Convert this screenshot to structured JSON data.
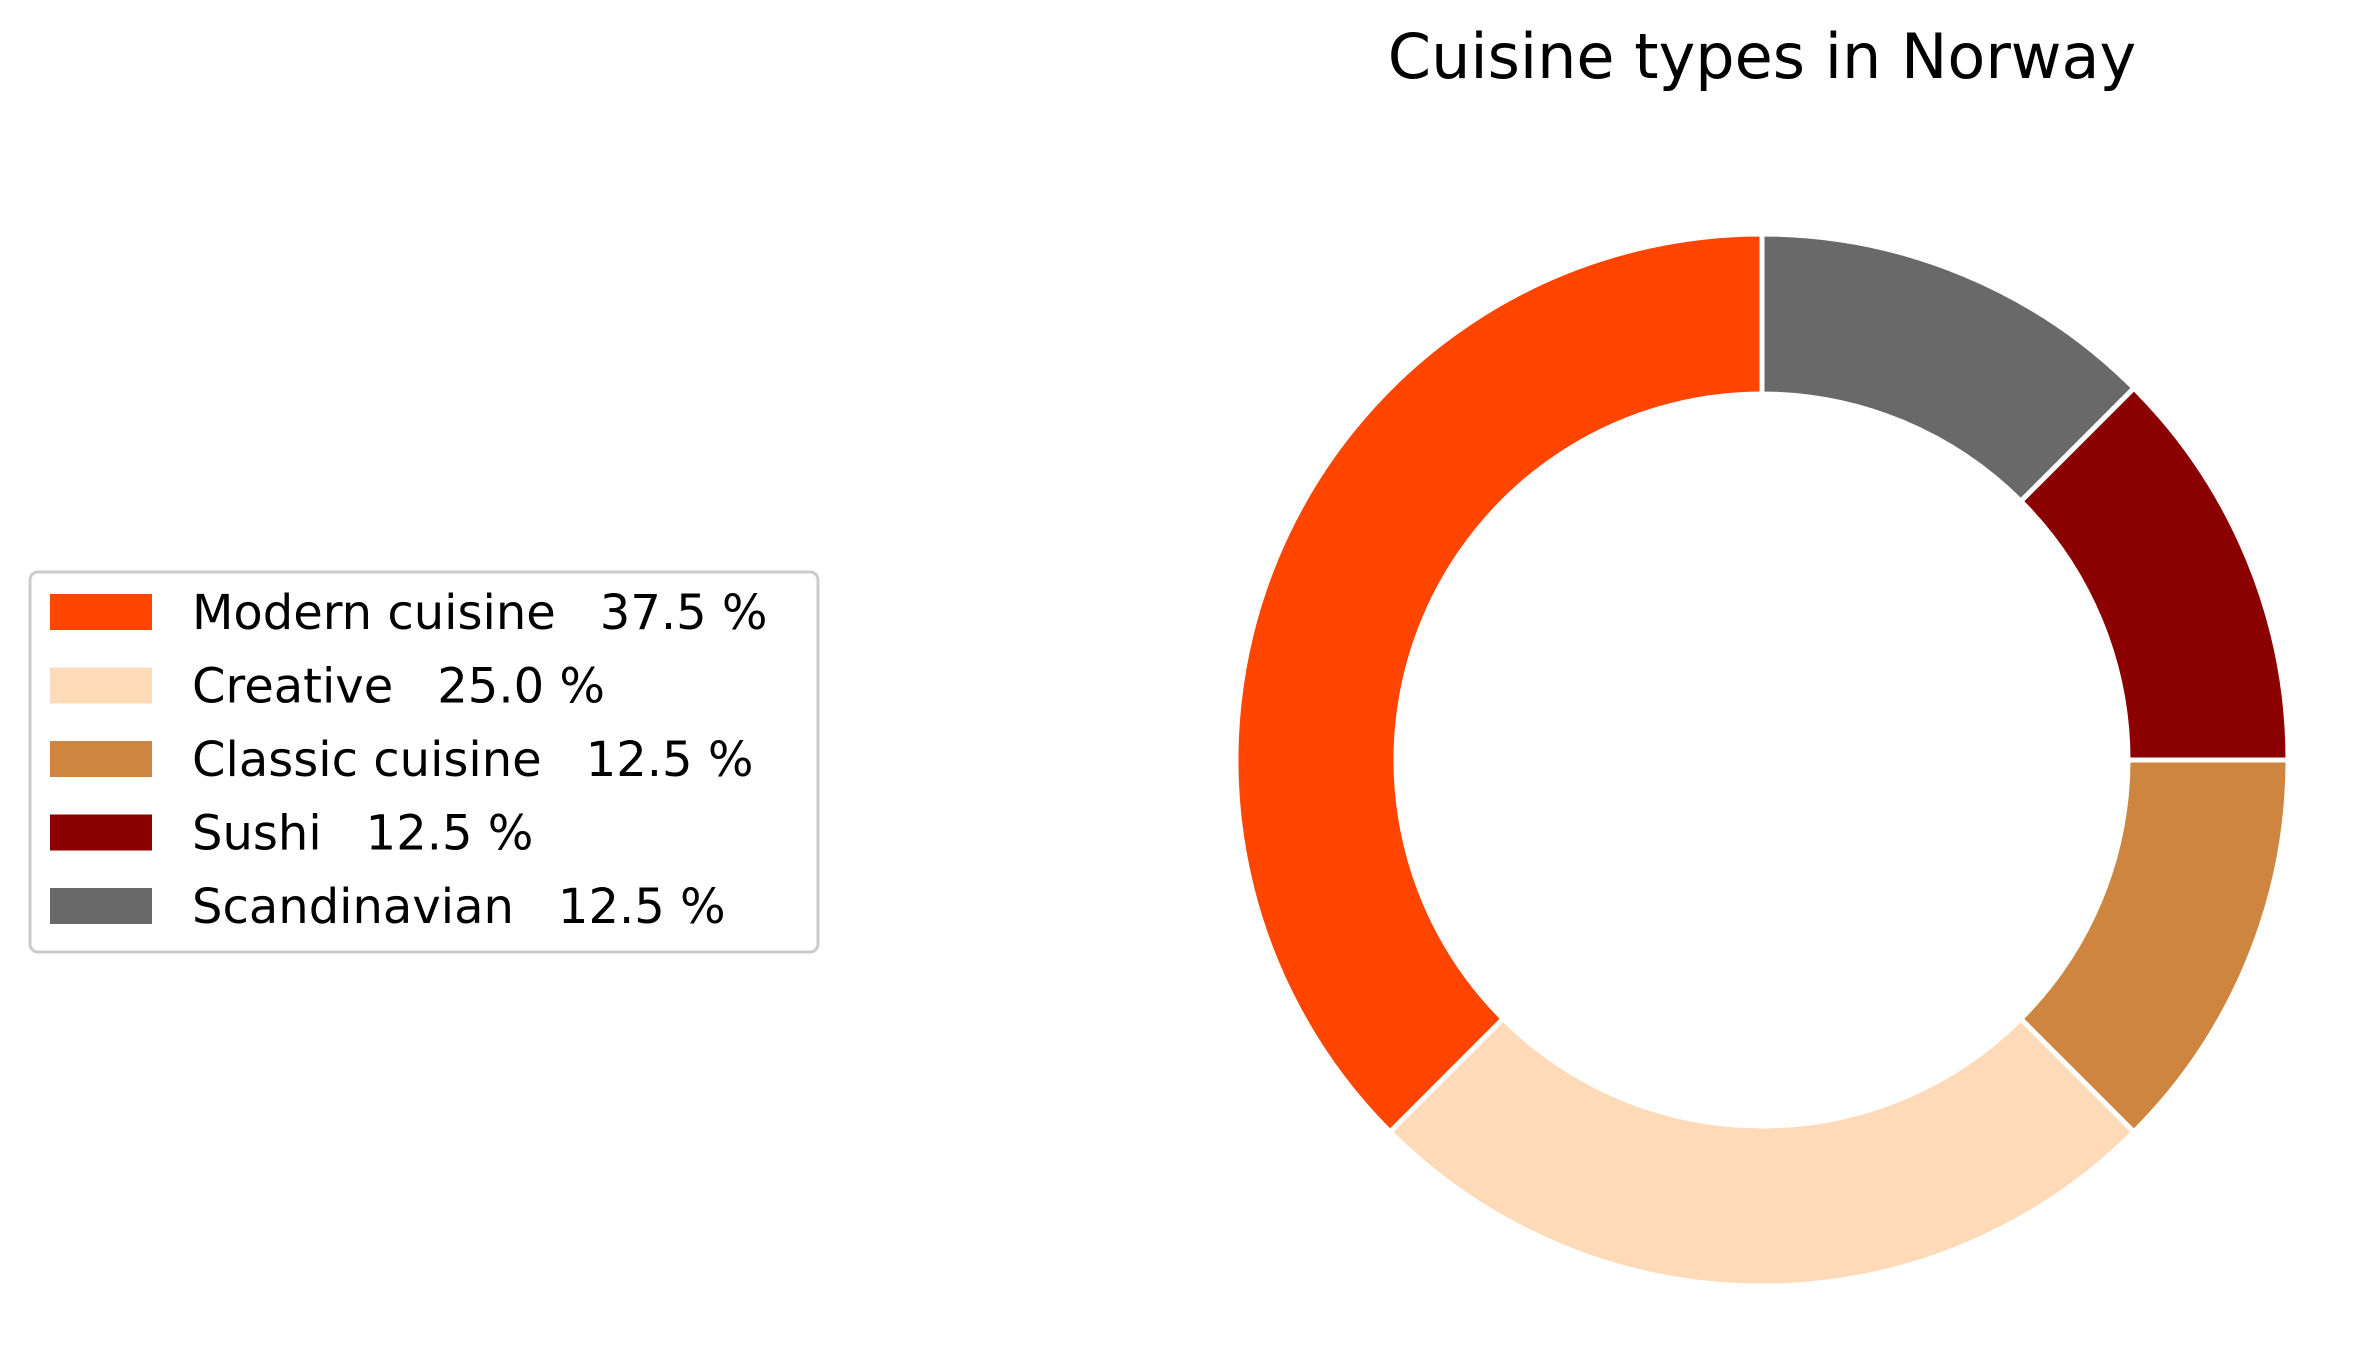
{
  "chart_data": {
    "type": "pie",
    "title": "Cuisine types in Norway",
    "donut": true,
    "start_angle_deg": 90,
    "direction": "counterclockwise",
    "legend_position": "left",
    "slices": [
      {
        "label": "Modern cuisine",
        "value": 37.5,
        "pct_text": "37.5 %",
        "color": "#ff4500"
      },
      {
        "label": "Creative",
        "value": 25.0,
        "pct_text": "25.0 %",
        "color": "#ffdab9"
      },
      {
        "label": "Classic cuisine",
        "value": 12.5,
        "pct_text": "12.5 %",
        "color": "#cd853f"
      },
      {
        "label": "Sushi",
        "value": 12.5,
        "pct_text": "12.5 %",
        "color": "#8b0000"
      },
      {
        "label": "Scandinavian",
        "value": 12.5,
        "pct_text": "12.5 %",
        "color": "#696969"
      }
    ]
  }
}
